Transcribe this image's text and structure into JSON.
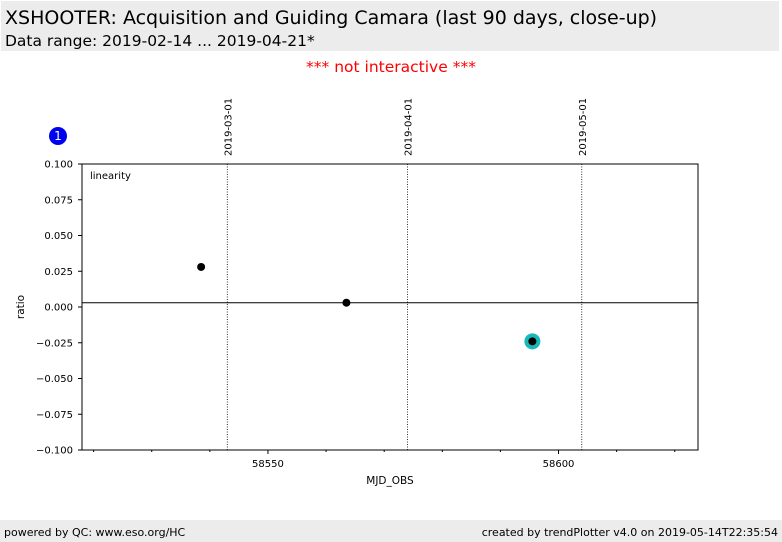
{
  "header": {
    "title": "XSHOOTER: Acquisition and Guiding Camara (last 90 days, close-up)",
    "subtitle": "Data range: 2019-02-14 ... 2019-04-21*"
  },
  "notice": "*** not interactive ***",
  "footer": {
    "left": "powered by QC: www.eso.org/HC",
    "right": "created by trendPlotter v4.0 on 2019-05-14T22:35:54"
  },
  "badge": "1",
  "colors": {
    "highlight": "#1ab8b8",
    "points": "#000000",
    "badge": "#0000ee"
  },
  "chart_data": {
    "type": "scatter",
    "panel_label": "linearity",
    "xlabel": "MJD_OBS",
    "ylabel": "ratio",
    "xlim": [
      58518,
      58624
    ],
    "ylim": [
      -0.1,
      0.1
    ],
    "x_ticks": [
      58550,
      58600
    ],
    "x_minor_ticks": [
      58520,
      58530,
      58540,
      58560,
      58570,
      58580,
      58590,
      58610,
      58620
    ],
    "y_ticks": [
      -0.1,
      -0.075,
      -0.05,
      -0.025,
      0.0,
      0.025,
      0.05,
      0.075,
      0.1
    ],
    "y_tick_labels": [
      "−0.100",
      "−0.075",
      "−0.050",
      "−0.025",
      "0.000",
      "0.025",
      "0.050",
      "0.075",
      "0.100"
    ],
    "date_markers": [
      {
        "x": 58543,
        "label": "2019-03-01"
      },
      {
        "x": 58574,
        "label": "2019-04-01"
      },
      {
        "x": 58604,
        "label": "2019-05-01"
      }
    ],
    "reference_line": 0.003,
    "points": [
      {
        "x": 58538.5,
        "y": 0.028
      },
      {
        "x": 58563.5,
        "y": 0.003
      },
      {
        "x": 58595.5,
        "y": -0.024,
        "highlight": true
      }
    ],
    "grid": false
  }
}
